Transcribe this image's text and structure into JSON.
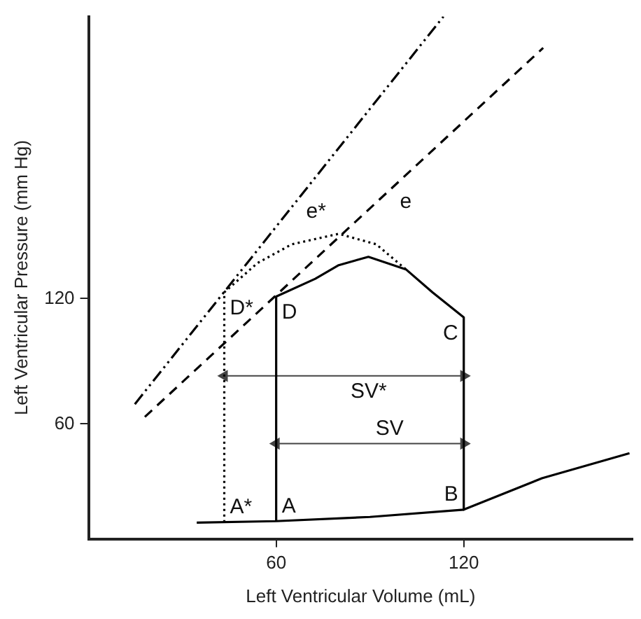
{
  "chart_data": {
    "type": "line",
    "xlabel": "Left Ventricular Volume (mL)",
    "ylabel": "Left Ventricular Pressure (mm Hg)",
    "xlim": [
      0,
      174
    ],
    "xticks": [
      60,
      120
    ],
    "ylim": [
      5,
      255
    ],
    "yticks": [
      60,
      120
    ],
    "grid": false,
    "legend": false,
    "marker": "none",
    "series": [
      {
        "color": "#000000",
        "line_style": "dashed",
        "x": [
          18,
          145.4
        ],
        "values": [
          63.4,
          240
        ]
      },
      {
        "color": "#000000",
        "line_style": "dashdot",
        "x": [
          14.8,
          113.5
        ],
        "values": [
          69.5,
          255
        ]
      },
      {
        "color": "#000000",
        "line_style": "solid",
        "x": [
          34.6,
          60,
          90,
          120,
          145,
          173
        ],
        "values": [
          12.8,
          13.5,
          15.5,
          19,
          34,
          46
        ]
      },
      {
        "color": "#000000",
        "line_style": "solid",
        "x": [
          60,
          60,
          72.5,
          80,
          89.5,
          101.5,
          110,
          120,
          120
        ],
        "values": [
          13.5,
          121,
          129.5,
          136,
          140,
          134,
          123,
          111,
          19
        ]
      },
      {
        "color": "#000000",
        "line_style": "dotted",
        "x": [
          43.4,
          43.4,
          54,
          65,
          80,
          92,
          101.5
        ],
        "values": [
          13,
          123,
          137,
          146,
          151,
          146,
          134
        ]
      },
      {
        "color": "#444444",
        "line_style": "solid",
        "marker": "triangle",
        "x": [
          43.4,
          120
        ],
        "values": [
          83,
          83
        ]
      },
      {
        "color": "#444444",
        "line_style": "solid",
        "marker": "triangle",
        "x": [
          60,
          120
        ],
        "values": [
          50.6,
          50.6
        ]
      }
    ],
    "annotations": [
      {
        "text": "A*",
        "x": 43.4,
        "y": 13
      },
      {
        "text": "A",
        "x": 60,
        "y": 13.5
      },
      {
        "text": "B",
        "x": 120,
        "y": 19
      },
      {
        "text": "C",
        "x": 120,
        "y": 111
      },
      {
        "text": "D",
        "x": 60,
        "y": 121
      },
      {
        "text": "D*",
        "x": 43.4,
        "y": 123
      },
      {
        "text": "e*",
        "x": 67.8,
        "y": 169.1
      },
      {
        "text": "e",
        "x": 97.8,
        "y": 174
      },
      {
        "text": "SV*",
        "x": 82,
        "y": 83
      },
      {
        "text": "SV",
        "x": 90,
        "y": 50.6
      }
    ]
  }
}
